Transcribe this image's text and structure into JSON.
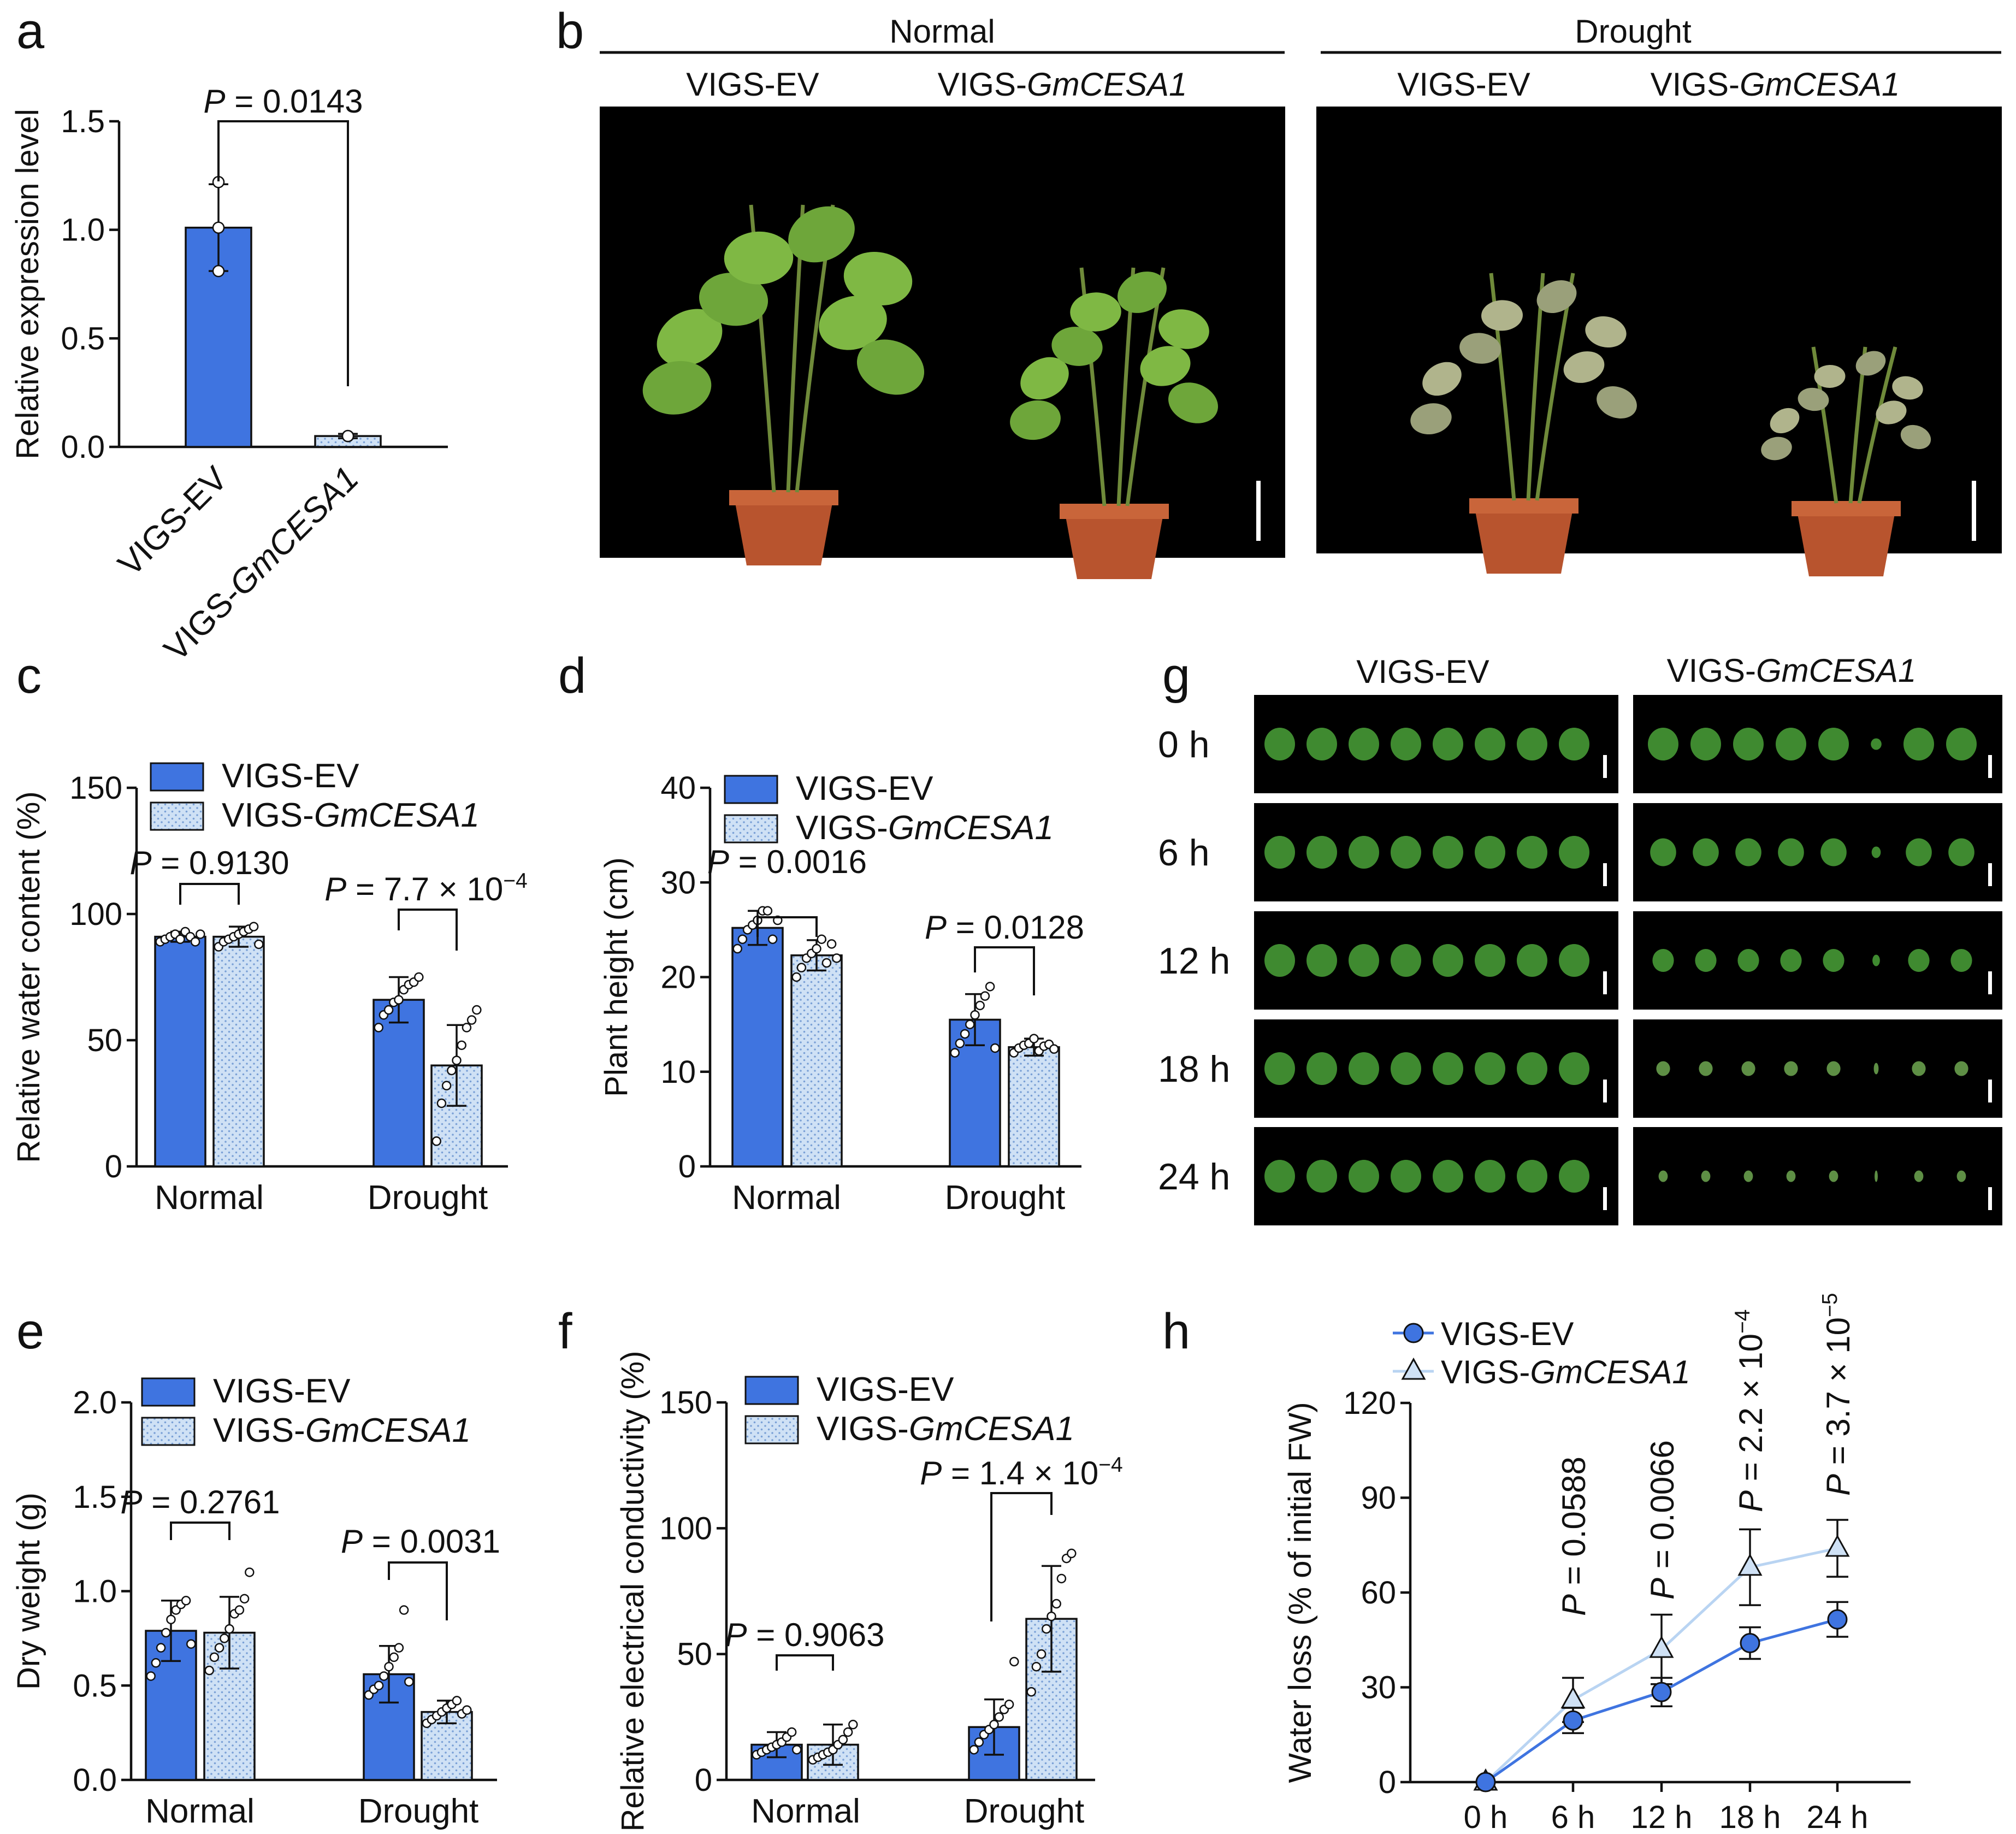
{
  "panels": {
    "a": {
      "label": "a"
    },
    "b": {
      "label": "b"
    },
    "c": {
      "label": "c"
    },
    "d": {
      "label": "d"
    },
    "e": {
      "label": "e"
    },
    "f": {
      "label": "f"
    },
    "g": {
      "label": "g"
    },
    "h": {
      "label": "h"
    }
  },
  "legend": {
    "ev": "VIGS-EV",
    "mut_prefix": "VIGS-",
    "mut_gene": "GmCESA1"
  },
  "common": {
    "p_prefix": "P",
    "eq": " = ",
    "times_ten": " × 10",
    "normal": "Normal",
    "drought": "Drought"
  },
  "panel_b": {
    "normal_header": "Normal",
    "drought_header": "Drought",
    "ev_label": "VIGS-EV",
    "mut_prefix": "VIGS-",
    "mut_gene": "GmCESA1"
  },
  "panel_g": {
    "ev_label": "VIGS-EV",
    "mut_prefix": "VIGS-",
    "mut_gene": "GmCESA1",
    "rows": [
      "0 h",
      "6 h",
      "12 h",
      "18 h",
      "24 h"
    ],
    "leaf_counts_ev": [
      8,
      8,
      8,
      8,
      8
    ],
    "leaf_counts_mut": [
      8,
      8,
      8,
      8,
      8
    ]
  },
  "colors": {
    "ev": "#3f74e0",
    "mut": "#cfe1f5",
    "mut_dot": "#7aa0d6",
    "line_mut": "#b9d4f2",
    "leaf": "#3f8a30"
  },
  "chart_data": [
    {
      "panel": "a",
      "type": "bar",
      "ylabel": "Relative expression level",
      "ylim": [
        0,
        1.5
      ],
      "yticks": [
        "0.0",
        "0.5",
        "1.0",
        "1.5"
      ],
      "categories": [
        "VIGS-EV",
        "VIGS-GmCESA1"
      ],
      "values": [
        1.01,
        0.05
      ],
      "errors": [
        0.2,
        0.01
      ],
      "points": [
        [
          1.22,
          0.81,
          1.01
        ],
        [
          0.05,
          0.05,
          0.05
        ]
      ],
      "annotations": [
        {
          "p": "0.0143"
        }
      ]
    },
    {
      "panel": "c",
      "type": "bar",
      "ylabel": "Relative water content (%)",
      "ylim": [
        0,
        150
      ],
      "yticks": [
        "0",
        "50",
        "100",
        "150"
      ],
      "categories": [
        "Normal",
        "Drought"
      ],
      "series": [
        {
          "name": "VIGS-EV",
          "values": [
            91,
            66
          ],
          "errors": [
            2,
            9
          ],
          "points": [
            [
              89,
              90,
              91,
              92,
              90,
              93,
              91,
              89,
              92
            ],
            [
              55,
              60,
              62,
              65,
              66,
              70,
              72,
              73,
              75
            ]
          ]
        },
        {
          "name": "VIGS-GmCESA1",
          "values": [
            91,
            40
          ],
          "errors": [
            4,
            16
          ],
          "points": [
            [
              87,
              89,
              90,
              91,
              92,
              93,
              94,
              95,
              88
            ],
            [
              10,
              25,
              32,
              38,
              42,
              48,
              55,
              58,
              62
            ]
          ]
        }
      ],
      "annotations": [
        {
          "p": "0.9130"
        },
        {
          "p": "7.7",
          "exp": "−4"
        }
      ]
    },
    {
      "panel": "d",
      "type": "bar",
      "ylabel": "Plant height (cm)",
      "ylim": [
        0,
        40
      ],
      "yticks": [
        "0",
        "10",
        "20",
        "30",
        "40"
      ],
      "categories": [
        "Normal",
        "Drought"
      ],
      "series": [
        {
          "name": "VIGS-EV",
          "values": [
            25.2,
            15.5
          ],
          "errors": [
            1.8,
            2.7
          ],
          "points": [
            [
              23,
              24,
              25,
              25.5,
              26,
              27,
              27,
              24,
              26
            ],
            [
              12,
              13,
              14,
              15,
              16,
              17,
              18,
              19,
              12.5
            ]
          ]
        },
        {
          "name": "VIGS-GmCESA1",
          "values": [
            22.3,
            12.6
          ],
          "errors": [
            1.6,
            0.9
          ],
          "points": [
            [
              20,
              21,
              22,
              22.5,
              23,
              24,
              21.5,
              23.5,
              22
            ],
            [
              12,
              12.5,
              12.8,
              13,
              13.5,
              12.2,
              12.7,
              12.9,
              12.4
            ]
          ]
        }
      ],
      "annotations": [
        {
          "p": "0.0016"
        },
        {
          "p": "0.0128"
        }
      ]
    },
    {
      "panel": "e",
      "type": "bar",
      "ylabel": "Dry weight (g)",
      "ylim": [
        0,
        2.0
      ],
      "yticks": [
        "0.0",
        "0.5",
        "1.0",
        "1.5",
        "2.0"
      ],
      "categories": [
        "Normal",
        "Drought"
      ],
      "series": [
        {
          "name": "VIGS-EV",
          "values": [
            0.79,
            0.56
          ],
          "errors": [
            0.16,
            0.15
          ],
          "points": [
            [
              0.55,
              0.62,
              0.7,
              0.78,
              0.85,
              0.9,
              0.93,
              0.95,
              0.72
            ],
            [
              0.45,
              0.48,
              0.5,
              0.55,
              0.6,
              0.65,
              0.7,
              0.9,
              0.52
            ]
          ]
        },
        {
          "name": "VIGS-GmCESA1",
          "values": [
            0.78,
            0.36
          ],
          "errors": [
            0.19,
            0.06
          ],
          "points": [
            [
              0.58,
              0.65,
              0.7,
              0.75,
              0.8,
              0.88,
              0.9,
              0.96,
              1.1
            ],
            [
              0.3,
              0.32,
              0.34,
              0.36,
              0.38,
              0.4,
              0.42,
              0.35,
              0.37
            ]
          ]
        }
      ],
      "annotations": [
        {
          "p": "0.2761"
        },
        {
          "p": "0.0031"
        }
      ]
    },
    {
      "panel": "f",
      "type": "bar",
      "ylabel": "Relative electrical conductivity (%)",
      "ylim": [
        0,
        150
      ],
      "yticks": [
        "0",
        "50",
        "100",
        "150"
      ],
      "categories": [
        "Normal",
        "Drought"
      ],
      "series": [
        {
          "name": "VIGS-EV",
          "values": [
            14,
            21
          ],
          "errors": [
            5,
            11
          ],
          "points": [
            [
              10,
              11,
              12,
              13,
              14,
              15,
              17,
              19,
              12
            ],
            [
              12,
              15,
              18,
              20,
              22,
              25,
              28,
              30,
              47
            ]
          ]
        },
        {
          "name": "VIGS-GmCESA1",
          "values": [
            14,
            64
          ],
          "errors": [
            8,
            21
          ],
          "points": [
            [
              8,
              9,
              10,
              11,
              12,
              14,
              16,
              19,
              22
            ],
            [
              35,
              45,
              50,
              60,
              65,
              70,
              80,
              88,
              90
            ]
          ]
        }
      ],
      "annotations": [
        {
          "p": "0.9063"
        },
        {
          "p": "1.4",
          "exp": "−4"
        }
      ]
    },
    {
      "panel": "h",
      "type": "line",
      "ylabel": "Water loss (% of initial FW)",
      "ylim": [
        0,
        120
      ],
      "yticks": [
        "0",
        "30",
        "60",
        "90",
        "120"
      ],
      "x": [
        "0 h",
        "6 h",
        "12 h",
        "18 h",
        "24 h"
      ],
      "series": [
        {
          "name": "VIGS-EV",
          "values": [
            0,
            19.5,
            28.5,
            44,
            51.5
          ],
          "errors": [
            0,
            4,
            4.5,
            5,
            5.5
          ]
        },
        {
          "name": "VIGS-GmCESA1",
          "values": [
            0,
            26,
            42,
            68,
            74
          ],
          "errors": [
            0,
            7,
            11,
            12,
            9
          ]
        }
      ],
      "annotations": [
        {
          "p": "0.0588"
        },
        {
          "p": "0.0066"
        },
        {
          "p": "2.2",
          "exp": "−4"
        },
        {
          "p": "3.7",
          "exp": "−5"
        }
      ]
    }
  ]
}
